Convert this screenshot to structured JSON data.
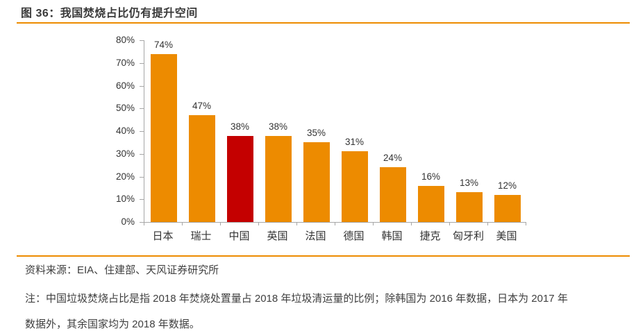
{
  "page": {
    "title": "图 36：我国焚烧占比仍有提升空间",
    "source": "资料来源：EIA、住建部、天风证券研究所",
    "note_lines": [
      "注：中国垃圾焚烧占比是指 2018 年焚烧处置量占 2018 年垃圾清运量的比例；除韩国为 2016 年数据，日本为 2017 年",
      "数据外，其余国家均为 2018 年数据。"
    ]
  },
  "colors": {
    "bar": "#ED8B00",
    "bar_highlight": "#C40000",
    "rule": "#ED8B00",
    "axis_line": "#A6A6A6",
    "label_text": "#333333"
  },
  "chart_data": {
    "type": "bar",
    "categories": [
      "日本",
      "瑞士",
      "中国",
      "英国",
      "法国",
      "德国",
      "韩国",
      "捷克",
      "匈牙利",
      "美国"
    ],
    "values": [
      74,
      47,
      38,
      38,
      35,
      31,
      24,
      16,
      13,
      12
    ],
    "data_labels": [
      "74%",
      "47%",
      "38%",
      "38%",
      "35%",
      "31%",
      "24%",
      "16%",
      "13%",
      "12%"
    ],
    "highlight_index": 2,
    "title": "",
    "xlabel": "",
    "ylabel": "",
    "ylim": [
      0,
      80
    ],
    "ytick_step": 10,
    "ytick_labels": [
      "0%",
      "10%",
      "20%",
      "30%",
      "40%",
      "50%",
      "60%",
      "70%",
      "80%"
    ],
    "grid": false,
    "legend": "none"
  }
}
